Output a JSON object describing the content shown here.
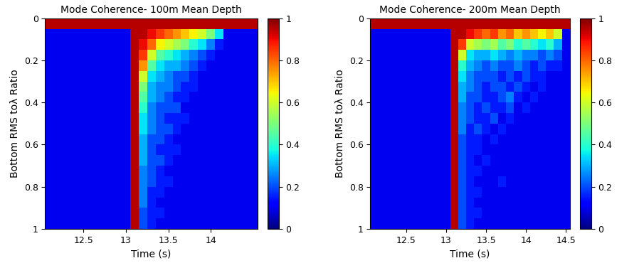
{
  "chart_data": [
    {
      "type": "heatmap",
      "title": "Mode Coherence- 100m Mean Depth",
      "x_label": "Time (s)",
      "y_label": "Bottom RMS toλ Ratio",
      "color": "jet",
      "x": [
        12.05,
        12.15,
        12.25,
        12.35,
        12.45,
        12.55,
        12.65,
        12.75,
        12.85,
        12.95,
        13.05,
        13.15,
        13.25,
        13.35,
        13.45,
        13.55,
        13.65,
        13.75,
        13.85,
        13.95,
        14.05,
        14.15,
        14.25,
        14.35,
        14.45,
        14.55
      ],
      "y": [
        0,
        0.05,
        0.1,
        0.15,
        0.2,
        0.25,
        0.3,
        0.35,
        0.4,
        0.45,
        0.5,
        0.55,
        0.6,
        0.65,
        0.7,
        0.75,
        0.8,
        0.85,
        0.9,
        0.95,
        1
      ],
      "xlim": [
        12.05,
        14.55
      ],
      "ylim": [
        1,
        0
      ],
      "xticks": [
        12.5,
        13,
        13.5,
        14
      ],
      "yticks": [
        0,
        0.2,
        0.4,
        0.6,
        0.8,
        1
      ],
      "colorbar_range": [
        0,
        1
      ],
      "colorbar_ticks": [
        0,
        0.2,
        0.4,
        0.6,
        0.8,
        1
      ],
      "cells": [
        [
          0.95,
          0.95,
          0.95,
          0.95,
          0.95,
          0.95,
          0.95,
          0.95,
          0.95,
          0.95,
          0.95,
          0.95,
          0.95,
          0.95,
          0.95,
          0.95,
          0.95,
          0.95,
          0.95,
          0.95,
          0.95,
          0.95,
          0.95,
          0.95,
          0.95
        ],
        [
          0.1,
          0.1,
          0.1,
          0.1,
          0.1,
          0.1,
          0.1,
          0.1,
          0.1,
          0.1,
          0.95,
          0.95,
          0.9,
          0.85,
          0.8,
          0.75,
          0.7,
          0.65,
          0.6,
          0.5,
          0.35,
          0.1,
          0.1,
          0.1,
          0.1
        ],
        [
          0.1,
          0.1,
          0.1,
          0.1,
          0.1,
          0.1,
          0.1,
          0.1,
          0.1,
          0.1,
          0.95,
          0.9,
          0.8,
          0.65,
          0.6,
          0.55,
          0.5,
          0.4,
          0.35,
          0.25,
          0.15,
          0.1,
          0.1,
          0.1,
          0.1
        ],
        [
          0.1,
          0.1,
          0.1,
          0.1,
          0.1,
          0.1,
          0.1,
          0.1,
          0.1,
          0.1,
          0.95,
          0.85,
          0.6,
          0.45,
          0.4,
          0.35,
          0.3,
          0.25,
          0.2,
          0.15,
          0.1,
          0.1,
          0.1,
          0.1,
          0.1
        ],
        [
          0.1,
          0.1,
          0.1,
          0.1,
          0.1,
          0.1,
          0.1,
          0.1,
          0.1,
          0.1,
          0.95,
          0.75,
          0.45,
          0.35,
          0.3,
          0.3,
          0.25,
          0.2,
          0.15,
          0.1,
          0.1,
          0.1,
          0.1,
          0.1,
          0.1
        ],
        [
          0.1,
          0.1,
          0.1,
          0.1,
          0.1,
          0.1,
          0.1,
          0.1,
          0.1,
          0.1,
          0.95,
          0.6,
          0.35,
          0.3,
          0.25,
          0.2,
          0.2,
          0.15,
          0.1,
          0.1,
          0.1,
          0.1,
          0.1,
          0.1,
          0.1
        ],
        [
          0.1,
          0.1,
          0.1,
          0.1,
          0.1,
          0.1,
          0.1,
          0.1,
          0.1,
          0.1,
          0.95,
          0.5,
          0.3,
          0.25,
          0.25,
          0.2,
          0.15,
          0.15,
          0.1,
          0.1,
          0.1,
          0.1,
          0.1,
          0.1,
          0.1
        ],
        [
          0.1,
          0.1,
          0.1,
          0.1,
          0.1,
          0.1,
          0.1,
          0.1,
          0.1,
          0.1,
          0.95,
          0.45,
          0.3,
          0.25,
          0.2,
          0.15,
          0.15,
          0.1,
          0.1,
          0.1,
          0.1,
          0.1,
          0.1,
          0.1,
          0.1
        ],
        [
          0.1,
          0.1,
          0.1,
          0.1,
          0.1,
          0.1,
          0.1,
          0.1,
          0.1,
          0.1,
          0.95,
          0.4,
          0.25,
          0.2,
          0.2,
          0.2,
          0.1,
          0.1,
          0.1,
          0.1,
          0.1,
          0.1,
          0.1,
          0.1,
          0.1
        ],
        [
          0.1,
          0.1,
          0.1,
          0.1,
          0.1,
          0.1,
          0.1,
          0.1,
          0.1,
          0.1,
          0.95,
          0.35,
          0.25,
          0.2,
          0.15,
          0.15,
          0.15,
          0.1,
          0.1,
          0.1,
          0.1,
          0.1,
          0.1,
          0.1,
          0.1
        ],
        [
          0.1,
          0.1,
          0.1,
          0.1,
          0.1,
          0.1,
          0.1,
          0.1,
          0.1,
          0.1,
          0.95,
          0.35,
          0.25,
          0.2,
          0.2,
          0.15,
          0.1,
          0.1,
          0.1,
          0.1,
          0.1,
          0.1,
          0.1,
          0.1,
          0.1
        ],
        [
          0.1,
          0.1,
          0.1,
          0.1,
          0.1,
          0.1,
          0.1,
          0.1,
          0.1,
          0.1,
          0.95,
          0.3,
          0.2,
          0.2,
          0.15,
          0.1,
          0.1,
          0.1,
          0.1,
          0.1,
          0.1,
          0.1,
          0.1,
          0.1,
          0.1
        ],
        [
          0.1,
          0.1,
          0.1,
          0.1,
          0.1,
          0.1,
          0.1,
          0.1,
          0.1,
          0.1,
          0.95,
          0.3,
          0.2,
          0.15,
          0.15,
          0.15,
          0.1,
          0.1,
          0.1,
          0.1,
          0.1,
          0.1,
          0.1,
          0.1,
          0.1
        ],
        [
          0.1,
          0.1,
          0.1,
          0.1,
          0.1,
          0.1,
          0.1,
          0.1,
          0.1,
          0.1,
          0.95,
          0.3,
          0.2,
          0.2,
          0.15,
          0.1,
          0.1,
          0.1,
          0.1,
          0.1,
          0.1,
          0.1,
          0.1,
          0.1,
          0.1
        ],
        [
          0.1,
          0.1,
          0.1,
          0.1,
          0.1,
          0.1,
          0.1,
          0.1,
          0.1,
          0.1,
          0.95,
          0.25,
          0.2,
          0.15,
          0.1,
          0.1,
          0.1,
          0.1,
          0.1,
          0.1,
          0.1,
          0.1,
          0.1,
          0.1,
          0.1
        ],
        [
          0.1,
          0.1,
          0.1,
          0.1,
          0.1,
          0.1,
          0.1,
          0.1,
          0.1,
          0.1,
          0.95,
          0.25,
          0.2,
          0.15,
          0.15,
          0.1,
          0.1,
          0.1,
          0.1,
          0.1,
          0.1,
          0.1,
          0.1,
          0.1,
          0.1
        ],
        [
          0.1,
          0.1,
          0.1,
          0.1,
          0.1,
          0.1,
          0.1,
          0.1,
          0.1,
          0.1,
          0.95,
          0.25,
          0.15,
          0.15,
          0.1,
          0.1,
          0.1,
          0.1,
          0.1,
          0.1,
          0.1,
          0.1,
          0.1,
          0.1,
          0.1
        ],
        [
          0.1,
          0.1,
          0.1,
          0.1,
          0.1,
          0.1,
          0.1,
          0.1,
          0.1,
          0.1,
          0.95,
          0.25,
          0.15,
          0.1,
          0.1,
          0.1,
          0.1,
          0.1,
          0.1,
          0.1,
          0.1,
          0.1,
          0.1,
          0.1,
          0.1
        ],
        [
          0.1,
          0.1,
          0.1,
          0.1,
          0.1,
          0.1,
          0.1,
          0.1,
          0.1,
          0.1,
          0.95,
          0.2,
          0.15,
          0.15,
          0.1,
          0.1,
          0.1,
          0.1,
          0.1,
          0.1,
          0.1,
          0.1,
          0.1,
          0.1,
          0.1
        ],
        [
          0.1,
          0.1,
          0.1,
          0.1,
          0.1,
          0.1,
          0.1,
          0.1,
          0.1,
          0.1,
          0.95,
          0.2,
          0.15,
          0.1,
          0.1,
          0.1,
          0.1,
          0.1,
          0.1,
          0.1,
          0.1,
          0.1,
          0.1,
          0.1,
          0.1
        ]
      ]
    },
    {
      "type": "heatmap",
      "title": "Mode Coherence- 200m Mean Depth",
      "x_label": "Time (s)",
      "y_label": "Bottom RMS toλ Ratio",
      "color": "jet",
      "x": [
        12.05,
        12.15,
        12.25,
        12.35,
        12.45,
        12.55,
        12.65,
        12.75,
        12.85,
        12.95,
        13.05,
        13.15,
        13.25,
        13.35,
        13.45,
        13.55,
        13.65,
        13.75,
        13.85,
        13.95,
        14.05,
        14.15,
        14.25,
        14.35,
        14.45,
        14.55
      ],
      "y": [
        0,
        0.05,
        0.1,
        0.15,
        0.2,
        0.25,
        0.3,
        0.35,
        0.4,
        0.45,
        0.5,
        0.55,
        0.6,
        0.65,
        0.7,
        0.75,
        0.8,
        0.85,
        0.9,
        0.95,
        1
      ],
      "xlim": [
        12.05,
        14.55
      ],
      "ylim": [
        1,
        0
      ],
      "xticks": [
        12.5,
        13,
        13.5,
        14,
        14.5
      ],
      "yticks": [
        0,
        0.2,
        0.4,
        0.6,
        0.8,
        1
      ],
      "colorbar_range": [
        0,
        1
      ],
      "colorbar_ticks": [
        0,
        0.2,
        0.4,
        0.6,
        0.8,
        1
      ],
      "cells": [
        [
          0.95,
          0.95,
          0.95,
          0.95,
          0.95,
          0.95,
          0.95,
          0.95,
          0.95,
          0.95,
          0.95,
          0.95,
          0.95,
          0.95,
          0.95,
          0.95,
          0.95,
          0.95,
          0.95,
          0.95,
          0.95,
          0.95,
          0.95,
          0.95,
          0.95
        ],
        [
          0.1,
          0.1,
          0.1,
          0.1,
          0.1,
          0.1,
          0.1,
          0.1,
          0.1,
          0.1,
          0.95,
          0.95,
          0.9,
          0.85,
          0.8,
          0.85,
          0.75,
          0.8,
          0.7,
          0.75,
          0.7,
          0.65,
          0.7,
          0.6,
          0.1
        ],
        [
          0.1,
          0.1,
          0.1,
          0.1,
          0.1,
          0.1,
          0.1,
          0.1,
          0.1,
          0.1,
          0.95,
          0.85,
          0.6,
          0.55,
          0.5,
          0.55,
          0.45,
          0.5,
          0.4,
          0.45,
          0.4,
          0.35,
          0.4,
          0.3,
          0.1
        ],
        [
          0.1,
          0.1,
          0.1,
          0.1,
          0.1,
          0.1,
          0.1,
          0.1,
          0.1,
          0.1,
          0.95,
          0.6,
          0.35,
          0.3,
          0.3,
          0.35,
          0.3,
          0.25,
          0.3,
          0.25,
          0.25,
          0.2,
          0.25,
          0.2,
          0.1
        ],
        [
          0.1,
          0.1,
          0.1,
          0.1,
          0.1,
          0.1,
          0.1,
          0.1,
          0.1,
          0.1,
          0.95,
          0.4,
          0.3,
          0.25,
          0.2,
          0.25,
          0.2,
          0.2,
          0.25,
          0.2,
          0.15,
          0.2,
          0.15,
          0.15,
          0.1
        ],
        [
          0.1,
          0.1,
          0.1,
          0.1,
          0.1,
          0.1,
          0.1,
          0.1,
          0.1,
          0.1,
          0.95,
          0.35,
          0.25,
          0.2,
          0.2,
          0.2,
          0.15,
          0.2,
          0.15,
          0.2,
          0.15,
          0.15,
          0.1,
          0.1,
          0.1
        ],
        [
          0.1,
          0.1,
          0.1,
          0.1,
          0.1,
          0.1,
          0.1,
          0.1,
          0.1,
          0.1,
          0.95,
          0.3,
          0.25,
          0.2,
          0.15,
          0.2,
          0.2,
          0.15,
          0.2,
          0.15,
          0.1,
          0.15,
          0.1,
          0.1,
          0.1
        ],
        [
          0.1,
          0.1,
          0.1,
          0.1,
          0.1,
          0.1,
          0.1,
          0.1,
          0.1,
          0.1,
          0.95,
          0.3,
          0.2,
          0.2,
          0.15,
          0.15,
          0.2,
          0.25,
          0.15,
          0.1,
          0.15,
          0.1,
          0.1,
          0.1,
          0.1
        ],
        [
          0.1,
          0.1,
          0.1,
          0.1,
          0.1,
          0.1,
          0.1,
          0.1,
          0.1,
          0.1,
          0.95,
          0.25,
          0.2,
          0.15,
          0.2,
          0.15,
          0.15,
          0.2,
          0.1,
          0.15,
          0.1,
          0.1,
          0.1,
          0.1,
          0.1
        ],
        [
          0.1,
          0.1,
          0.1,
          0.1,
          0.1,
          0.1,
          0.1,
          0.1,
          0.1,
          0.1,
          0.95,
          0.25,
          0.2,
          0.15,
          0.15,
          0.2,
          0.1,
          0.15,
          0.1,
          0.1,
          0.1,
          0.1,
          0.1,
          0.1,
          0.1
        ],
        [
          0.1,
          0.1,
          0.1,
          0.1,
          0.1,
          0.1,
          0.1,
          0.1,
          0.1,
          0.1,
          0.95,
          0.25,
          0.15,
          0.2,
          0.15,
          0.1,
          0.15,
          0.1,
          0.1,
          0.1,
          0.1,
          0.1,
          0.1,
          0.1,
          0.1
        ],
        [
          0.1,
          0.1,
          0.1,
          0.1,
          0.1,
          0.1,
          0.1,
          0.1,
          0.1,
          0.1,
          0.95,
          0.2,
          0.15,
          0.15,
          0.1,
          0.15,
          0.1,
          0.1,
          0.1,
          0.1,
          0.1,
          0.1,
          0.1,
          0.1,
          0.1
        ],
        [
          0.1,
          0.1,
          0.1,
          0.1,
          0.1,
          0.1,
          0.1,
          0.1,
          0.1,
          0.1,
          0.95,
          0.2,
          0.15,
          0.15,
          0.1,
          0.1,
          0.1,
          0.1,
          0.1,
          0.1,
          0.1,
          0.1,
          0.1,
          0.1,
          0.1
        ],
        [
          0.1,
          0.1,
          0.1,
          0.1,
          0.1,
          0.1,
          0.1,
          0.1,
          0.1,
          0.1,
          0.95,
          0.2,
          0.15,
          0.1,
          0.15,
          0.1,
          0.1,
          0.1,
          0.1,
          0.1,
          0.1,
          0.1,
          0.1,
          0.1,
          0.1
        ],
        [
          0.1,
          0.1,
          0.1,
          0.1,
          0.1,
          0.1,
          0.1,
          0.1,
          0.1,
          0.1,
          0.95,
          0.2,
          0.15,
          0.15,
          0.1,
          0.1,
          0.1,
          0.1,
          0.1,
          0.1,
          0.1,
          0.1,
          0.1,
          0.1,
          0.1
        ],
        [
          0.1,
          0.1,
          0.1,
          0.1,
          0.1,
          0.1,
          0.1,
          0.1,
          0.1,
          0.1,
          0.95,
          0.2,
          0.15,
          0.1,
          0.1,
          0.1,
          0.15,
          0.1,
          0.1,
          0.1,
          0.1,
          0.1,
          0.1,
          0.1,
          0.1
        ],
        [
          0.1,
          0.1,
          0.1,
          0.1,
          0.1,
          0.1,
          0.1,
          0.1,
          0.1,
          0.1,
          0.95,
          0.2,
          0.15,
          0.15,
          0.1,
          0.1,
          0.1,
          0.1,
          0.1,
          0.1,
          0.1,
          0.1,
          0.1,
          0.1,
          0.1
        ],
        [
          0.1,
          0.1,
          0.1,
          0.1,
          0.1,
          0.1,
          0.1,
          0.1,
          0.1,
          0.1,
          0.95,
          0.2,
          0.15,
          0.1,
          0.1,
          0.1,
          0.1,
          0.1,
          0.1,
          0.1,
          0.1,
          0.1,
          0.1,
          0.1,
          0.1
        ],
        [
          0.1,
          0.1,
          0.1,
          0.1,
          0.1,
          0.1,
          0.1,
          0.1,
          0.1,
          0.1,
          0.95,
          0.2,
          0.15,
          0.15,
          0.1,
          0.1,
          0.1,
          0.1,
          0.1,
          0.1,
          0.1,
          0.1,
          0.1,
          0.1,
          0.1
        ],
        [
          0.1,
          0.1,
          0.1,
          0.1,
          0.1,
          0.1,
          0.1,
          0.1,
          0.1,
          0.1,
          0.95,
          0.2,
          0.15,
          0.1,
          0.1,
          0.1,
          0.1,
          0.1,
          0.1,
          0.1,
          0.1,
          0.1,
          0.1,
          0.1,
          0.1
        ]
      ]
    }
  ]
}
